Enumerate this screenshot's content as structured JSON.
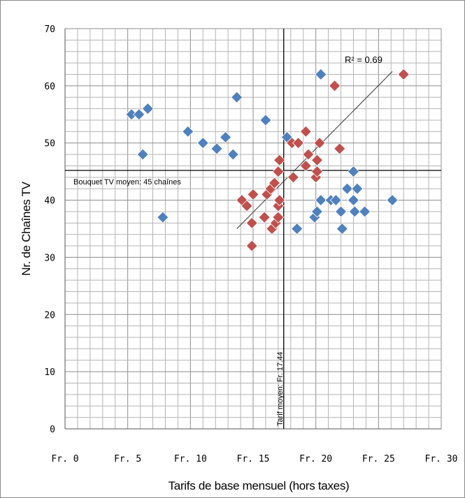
{
  "chart_data": {
    "type": "scatter",
    "title": "",
    "xlabel": "Tarifs de base mensuel (hors taxes)",
    "ylabel": "Nr. de Chaînes TV",
    "xlim": [
      0,
      30
    ],
    "ylim": [
      0,
      70
    ],
    "x_ticks": [
      0,
      5,
      10,
      15,
      20,
      25,
      30
    ],
    "x_tick_labels": [
      "Fr. 0",
      "Fr. 5",
      "Fr. 10",
      "Fr. 15",
      "Fr. 20",
      "Fr. 25",
      "Fr. 30"
    ],
    "y_ticks": [
      0,
      10,
      20,
      30,
      40,
      50,
      60,
      70
    ],
    "grid": true,
    "series": [
      {
        "color": "#4f81bd",
        "marker": "diamond",
        "points": [
          [
            5.3,
            55
          ],
          [
            5.9,
            55
          ],
          [
            6.6,
            56
          ],
          [
            6.2,
            48
          ],
          [
            7.8,
            37
          ],
          [
            9.8,
            52
          ],
          [
            11.0,
            50
          ],
          [
            12.1,
            49
          ],
          [
            12.8,
            51
          ],
          [
            13.4,
            48
          ],
          [
            13.7,
            58
          ],
          [
            16.0,
            54
          ],
          [
            17.7,
            51
          ],
          [
            18.5,
            35
          ],
          [
            19.9,
            37
          ],
          [
            20.1,
            38
          ],
          [
            20.4,
            40
          ],
          [
            20.4,
            62
          ],
          [
            21.2,
            40
          ],
          [
            21.6,
            40
          ],
          [
            22.0,
            38
          ],
          [
            22.1,
            35
          ],
          [
            22.5,
            42
          ],
          [
            23.0,
            45
          ],
          [
            23.0,
            40
          ],
          [
            23.1,
            38
          ],
          [
            23.3,
            42
          ],
          [
            23.9,
            38
          ],
          [
            26.1,
            40
          ]
        ]
      },
      {
        "color": "#c0504d",
        "marker": "diamond",
        "points": [
          [
            14.1,
            40
          ],
          [
            14.5,
            39
          ],
          [
            14.9,
            36
          ],
          [
            14.9,
            32
          ],
          [
            15.0,
            41
          ],
          [
            15.9,
            37
          ],
          [
            16.1,
            41
          ],
          [
            16.4,
            42
          ],
          [
            16.5,
            35
          ],
          [
            16.7,
            43
          ],
          [
            16.8,
            36
          ],
          [
            17.0,
            39
          ],
          [
            17.0,
            37
          ],
          [
            17.0,
            45
          ],
          [
            17.1,
            47
          ],
          [
            17.1,
            40
          ],
          [
            18.2,
            44
          ],
          [
            18.1,
            50
          ],
          [
            18.6,
            50
          ],
          [
            19.2,
            52
          ],
          [
            19.2,
            46
          ],
          [
            19.4,
            48
          ],
          [
            20.0,
            44
          ],
          [
            20.1,
            45
          ],
          [
            20.1,
            47
          ],
          [
            20.3,
            50
          ],
          [
            21.5,
            60
          ],
          [
            21.9,
            49
          ],
          [
            27.0,
            62
          ]
        ]
      }
    ],
    "trendline": {
      "from": [
        13.7,
        35
      ],
      "to": [
        26.1,
        62.5
      ],
      "r_squared_label": "R² = 0.69"
    },
    "reference_lines": [
      {
        "axis": "y",
        "value": 45.2,
        "label": "Bouquet TV moyen: 45 chaînes"
      },
      {
        "axis": "x",
        "value": 17.44,
        "label": "Tarif moyen: Fr. 17.44"
      }
    ]
  }
}
